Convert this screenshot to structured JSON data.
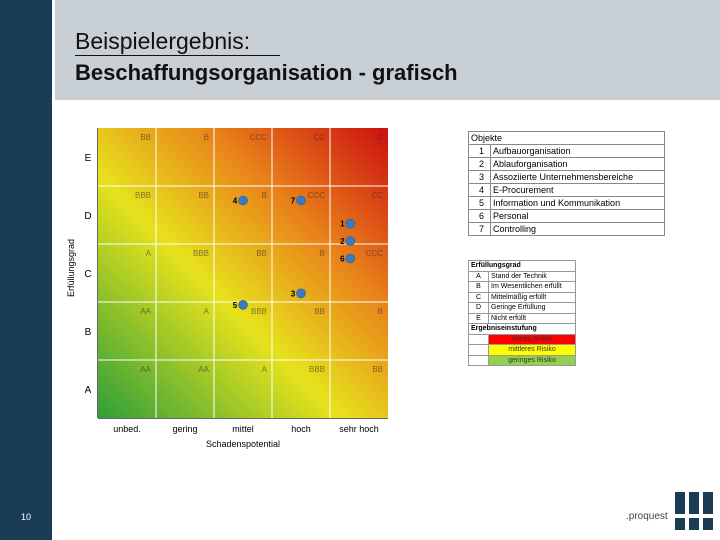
{
  "header": {
    "title_line1": "Beispielergebnis:",
    "title_line2": "Beschaffungsorganisation - grafisch"
  },
  "page_number": "10",
  "colors": {
    "sidebar": "#1a3d55",
    "header_bg": "#c8cfd5",
    "high_risk": "#ff0000",
    "medium_risk": "#ffff00",
    "low_risk": "#92d050",
    "point": "#3a7bbf"
  },
  "chart_data": {
    "type": "scatter",
    "xlabel": "Schadenspotential",
    "ylabel": "Erfüllungsgrad",
    "x_categories": [
      "unbed.",
      "gering",
      "mittel",
      "hoch",
      "sehr hoch"
    ],
    "y_categories": [
      "A",
      "B",
      "C",
      "D",
      "E"
    ],
    "grid_labels": [
      [
        "AA",
        "AA",
        "A",
        "BBB",
        "BB"
      ],
      [
        "AA",
        "A",
        "BBB",
        "BB",
        "B"
      ],
      [
        "A",
        "BBB",
        "BB",
        "B",
        "CCC"
      ],
      [
        "BBB",
        "BB",
        "B",
        "CCC",
        "CC"
      ],
      [
        "BB",
        "B",
        "CCC",
        "CC",
        "C"
      ]
    ],
    "points": [
      {
        "label": "1",
        "x": 4.35,
        "y": 3.35
      },
      {
        "label": "2",
        "x": 4.35,
        "y": 3.05
      },
      {
        "label": "3",
        "x": 3.5,
        "y": 2.15
      },
      {
        "label": "4",
        "x": 2.5,
        "y": 3.75
      },
      {
        "label": "5",
        "x": 2.5,
        "y": 1.95
      },
      {
        "label": "6",
        "x": 4.35,
        "y": 2.75
      },
      {
        "label": "7",
        "x": 3.5,
        "y": 3.75
      }
    ]
  },
  "objects_table": {
    "heading": "Objekte",
    "rows": [
      {
        "num": "1",
        "label": "Aufbauorganisation"
      },
      {
        "num": "2",
        "label": "Ablauforganisation"
      },
      {
        "num": "3",
        "label": "Assoziierte Unternehmensbereiche"
      },
      {
        "num": "4",
        "label": "E-Procurement"
      },
      {
        "num": "5",
        "label": "Information und Kommunikation"
      },
      {
        "num": "6",
        "label": "Personal"
      },
      {
        "num": "7",
        "label": "Controlling"
      }
    ]
  },
  "legend": {
    "fulfillment_heading": "Erfüllungsgrad",
    "fulfillment": [
      {
        "key": "A",
        "label": "Stand der Technik"
      },
      {
        "key": "B",
        "label": "Im Wesentlichen erfüllt"
      },
      {
        "key": "C",
        "label": "Mittelmäßig erfüllt"
      },
      {
        "key": "D",
        "label": "Geringe Erfüllung"
      },
      {
        "key": "E",
        "label": "Nicht erfüllt"
      }
    ],
    "rating_heading": "Ergebniseinstufung",
    "ratings": [
      {
        "label": "hohes Risiko",
        "color": "#ff0000"
      },
      {
        "label": "mittleres Risiko",
        "color": "#ffff00"
      },
      {
        "label": "geringes Risiko",
        "color": "#92d050"
      }
    ]
  },
  "logo": {
    "text": ".proquest"
  }
}
